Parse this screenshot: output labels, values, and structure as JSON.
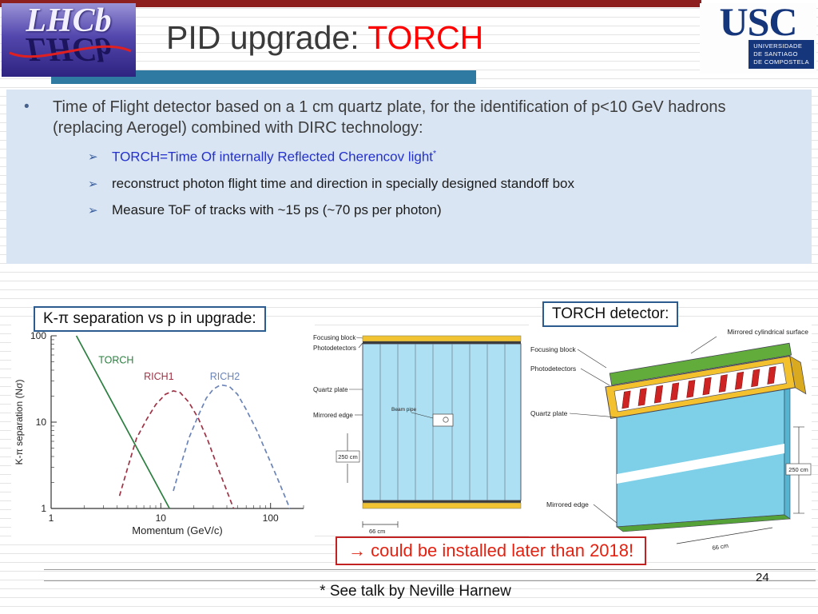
{
  "header": {
    "title_main": "PID upgrade: ",
    "title_accent": "TORCH",
    "accent_color": "#ff0000",
    "lhcb_text": "LHCb",
    "usc_letters": "USC",
    "usc_caption_lines": [
      "UNIVERSIDADE",
      "DE SANTIAGO",
      "DE COMPOSTELA"
    ]
  },
  "content_box": {
    "bullet_text": "Time of Flight detector based on a 1 cm quartz plate, for the identification of p<10 GeV hadrons (replacing Aerogel) combined with DIRC technology:",
    "sub_bullets": [
      {
        "marker": "➢",
        "text": "TORCH=Time Of internally Reflected Cherencov light",
        "sup": "*"
      },
      {
        "marker": "➢",
        "text": "reconstruct photon flight time and direction in specially designed standoff box",
        "sup": ""
      },
      {
        "marker": "➢",
        "text": "Measure ToF of tracks with ~15 ps (~70 ps per photon)",
        "sup": ""
      }
    ]
  },
  "captions": {
    "left_plot": "K-π separation vs p in upgrade:",
    "right_diagram": "TORCH detector:",
    "note": "→ could be installed later than 2018!"
  },
  "chart_data": {
    "type": "line",
    "title": "",
    "xlabel": "Momentum  (GeV/c)",
    "ylabel": "K-π separation  (Nσ)",
    "xscale": "log",
    "yscale": "log",
    "xlim": [
      1,
      200
    ],
    "ylim": [
      1,
      100
    ],
    "xticks": [
      1,
      10,
      100
    ],
    "yticks": [
      1,
      10,
      100
    ],
    "grid": false,
    "legend": "inline-labels",
    "series": [
      {
        "name": "TORCH",
        "color": "#2a7f3f",
        "dash": "",
        "label_pos": [
          2.7,
          48
        ],
        "points": [
          [
            1.7,
            100
          ],
          [
            12,
            1
          ]
        ]
      },
      {
        "name": "RICH1",
        "color": "#9e3346",
        "dash": "6,4",
        "label_pos": [
          7.0,
          31
        ],
        "points": [
          [
            4.2,
            1.4
          ],
          [
            5,
            3
          ],
          [
            6,
            6.5
          ],
          [
            7.5,
            11
          ],
          [
            9,
            16
          ],
          [
            11,
            21
          ],
          [
            13,
            23
          ],
          [
            15,
            22
          ],
          [
            18,
            17
          ],
          [
            22,
            11
          ],
          [
            27,
            6
          ],
          [
            33,
            3
          ],
          [
            40,
            1.6
          ],
          [
            46,
            1
          ]
        ]
      },
      {
        "name": "RICH2",
        "color": "#6b84b8",
        "dash": "6,4",
        "label_pos": [
          28,
          31
        ],
        "points": [
          [
            13,
            1.6
          ],
          [
            15,
            3
          ],
          [
            18,
            6.5
          ],
          [
            22,
            12
          ],
          [
            26,
            19
          ],
          [
            30,
            24
          ],
          [
            35,
            27
          ],
          [
            42,
            26
          ],
          [
            50,
            21
          ],
          [
            60,
            14
          ],
          [
            75,
            8
          ],
          [
            95,
            4
          ],
          [
            120,
            2
          ],
          [
            150,
            1
          ]
        ]
      }
    ]
  },
  "front_view": {
    "labels": {
      "focusing_block": "Focusing block",
      "photodetectors": "Photodetectors",
      "quartz_plate": "Quartz plate",
      "mirrored_edge": "Mirrored edge",
      "beam_pipe": "Beam pipe",
      "height_dim": "250 cm",
      "width_dim": "66 cm"
    }
  },
  "iso_view": {
    "labels": {
      "mirrored_cyl": "Mirrored cylindrical surface",
      "focusing_block": "Focusing block",
      "photodetectors": "Photodetectors",
      "quartz_plate": "Quartz plate",
      "mirrored_edge": "Mirrored edge",
      "height_dim": "250 cm",
      "width_dim": "66 cm"
    }
  },
  "footer": {
    "page_number": "24",
    "footnote": "* See talk by Neville Harnew"
  }
}
